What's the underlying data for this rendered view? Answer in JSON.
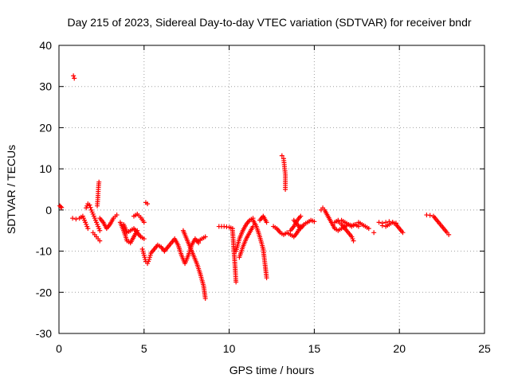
{
  "chart_data": {
    "type": "scatter",
    "title": "Day 215 of 2023, Sidereal Day-to-day VTEC variation (SDTVAR) for receiver bndr",
    "xlabel": "GPS time / hours",
    "ylabel": "SDTVAR / TECUs",
    "xlim": [
      0,
      25
    ],
    "ylim": [
      -30,
      40
    ],
    "x_ticks": [
      "0",
      "5",
      "10",
      "15",
      "20",
      "25"
    ],
    "y_ticks": [
      "40",
      "30",
      "20",
      "10",
      "0",
      "-10",
      "-20",
      "-30"
    ],
    "grid": true,
    "marker": "+",
    "color": "#ff0000",
    "series": [
      {
        "name": "SDTVAR",
        "segments": [
          [
            [
              0.05,
              1.0
            ],
            [
              0.1,
              0.8
            ],
            [
              0.15,
              0.6
            ]
          ],
          [
            [
              0.85,
              32.6
            ],
            [
              0.9,
              32.0
            ]
          ],
          [
            [
              0.8,
              -2.0
            ],
            [
              1.0,
              -2.2
            ],
            [
              1.2,
              -2.0
            ],
            [
              1.4,
              -1.5
            ],
            [
              1.5,
              -2.5
            ],
            [
              1.6,
              -3.5
            ],
            [
              1.7,
              -4.5
            ]
          ],
          [
            [
              1.6,
              0.5
            ],
            [
              1.7,
              1.5
            ],
            [
              1.8,
              1.2
            ],
            [
              1.9,
              0.0
            ],
            [
              2.0,
              -1.0
            ],
            [
              2.1,
              -2.0
            ],
            [
              2.2,
              -3.0
            ],
            [
              2.3,
              -4.0
            ],
            [
              2.4,
              -5.0
            ]
          ],
          [
            [
              2.0,
              -5.5
            ],
            [
              2.1,
              -6.0
            ],
            [
              2.2,
              -6.5
            ],
            [
              2.3,
              -7.0
            ],
            [
              2.4,
              -7.5
            ]
          ],
          [
            [
              2.25,
              1.0
            ],
            [
              2.28,
              2.5
            ],
            [
              2.3,
              4.0
            ],
            [
              2.32,
              5.5
            ],
            [
              2.35,
              6.8
            ]
          ],
          [
            [
              2.4,
              -2.0
            ],
            [
              2.6,
              -3.0
            ],
            [
              2.8,
              -4.5
            ],
            [
              3.0,
              -3.5
            ],
            [
              3.2,
              -2.0
            ],
            [
              3.4,
              -1.2
            ]
          ],
          [
            [
              3.6,
              -3.0
            ],
            [
              3.8,
              -5.0
            ],
            [
              4.0,
              -7.5
            ],
            [
              4.2,
              -8.0
            ],
            [
              4.4,
              -6.5
            ],
            [
              4.6,
              -5.0
            ]
          ],
          [
            [
              3.8,
              -3.5
            ],
            [
              4.0,
              -5.5
            ],
            [
              4.2,
              -5.0
            ],
            [
              4.4,
              -4.5
            ],
            [
              4.6,
              -5.5
            ],
            [
              4.8,
              -6.5
            ],
            [
              5.0,
              -7.0
            ]
          ],
          [
            [
              4.4,
              -1.5
            ],
            [
              4.6,
              -1.0
            ],
            [
              4.8,
              -1.8
            ],
            [
              5.0,
              -3.0
            ]
          ],
          [
            [
              4.9,
              -9.5
            ],
            [
              5.0,
              -11.0
            ],
            [
              5.1,
              -12.5
            ],
            [
              5.2,
              -13.0
            ],
            [
              5.3,
              -12.0
            ],
            [
              5.4,
              -10.5
            ],
            [
              5.6,
              -9.5
            ],
            [
              5.8,
              -8.5
            ],
            [
              6.0,
              -9.0
            ],
            [
              6.2,
              -10.0
            ]
          ],
          [
            [
              5.1,
              1.8
            ],
            [
              5.2,
              1.5
            ]
          ],
          [
            [
              6.2,
              -10.0
            ],
            [
              6.4,
              -9.0
            ],
            [
              6.6,
              -8.0
            ],
            [
              6.8,
              -7.0
            ],
            [
              7.0,
              -8.5
            ],
            [
              7.2,
              -11.0
            ],
            [
              7.4,
              -13.0
            ],
            [
              7.6,
              -11.0
            ],
            [
              7.8,
              -8.5
            ],
            [
              8.0,
              -7.0
            ],
            [
              8.2,
              -8.0
            ]
          ],
          [
            [
              7.3,
              -5.0
            ],
            [
              7.5,
              -7.0
            ],
            [
              7.7,
              -9.0
            ],
            [
              7.9,
              -11.0
            ],
            [
              8.1,
              -13.0
            ],
            [
              8.3,
              -15.5
            ],
            [
              8.5,
              -18.5
            ],
            [
              8.6,
              -21.5
            ]
          ],
          [
            [
              8.2,
              -7.5
            ],
            [
              8.4,
              -7.0
            ],
            [
              8.6,
              -6.5
            ]
          ],
          [
            [
              9.4,
              -4.0
            ],
            [
              9.7,
              -4.0
            ],
            [
              10.0,
              -4.2
            ],
            [
              10.2,
              -4.5
            ]
          ],
          [
            [
              10.2,
              -5.0
            ],
            [
              10.25,
              -8.0
            ],
            [
              10.3,
              -11.0
            ],
            [
              10.35,
              -14.0
            ],
            [
              10.4,
              -17.5
            ]
          ],
          [
            [
              10.4,
              -10.0
            ],
            [
              10.6,
              -7.0
            ],
            [
              10.8,
              -5.0
            ],
            [
              11.0,
              -3.5
            ],
            [
              11.2,
              -2.5
            ],
            [
              11.4,
              -2.0
            ]
          ],
          [
            [
              10.6,
              -11.5
            ],
            [
              10.8,
              -9.0
            ],
            [
              11.0,
              -7.0
            ],
            [
              11.2,
              -5.5
            ],
            [
              11.4,
              -4.0
            ]
          ],
          [
            [
              11.4,
              -2.5
            ],
            [
              11.6,
              -4.0
            ],
            [
              11.8,
              -6.5
            ],
            [
              12.0,
              -9.5
            ],
            [
              12.1,
              -13.0
            ],
            [
              12.2,
              -16.5
            ]
          ],
          [
            [
              11.8,
              -2.5
            ],
            [
              12.0,
              -1.5
            ],
            [
              12.2,
              -3.0
            ]
          ],
          [
            [
              13.1,
              13.2
            ],
            [
              13.2,
              12.5
            ],
            [
              13.25,
              10.5
            ],
            [
              13.3,
              8.5
            ],
            [
              13.3,
              6.5
            ],
            [
              13.3,
              5.0
            ]
          ],
          [
            [
              12.6,
              -4.0
            ],
            [
              12.8,
              -4.5
            ],
            [
              13.0,
              -5.5
            ],
            [
              13.2,
              -6.0
            ],
            [
              13.4,
              -5.5
            ],
            [
              13.6,
              -6.0
            ],
            [
              13.8,
              -6.5
            ],
            [
              14.0,
              -5.5
            ],
            [
              14.2,
              -4.0
            ]
          ],
          [
            [
              13.8,
              -2.5
            ],
            [
              14.0,
              -3.5
            ],
            [
              14.2,
              -4.5
            ],
            [
              14.4,
              -3.5
            ],
            [
              14.6,
              -3.0
            ],
            [
              14.8,
              -2.5
            ],
            [
              15.0,
              -2.8
            ]
          ],
          [
            [
              13.6,
              -5.0
            ],
            [
              13.8,
              -4.0
            ],
            [
              14.0,
              -2.5
            ],
            [
              14.2,
              -1.5
            ]
          ],
          [
            [
              15.4,
              0.0
            ],
            [
              15.5,
              0.5
            ],
            [
              15.6,
              0.0
            ],
            [
              15.8,
              -1.5
            ],
            [
              16.0,
              -3.0
            ],
            [
              16.2,
              -4.5
            ],
            [
              16.4,
              -5.0
            ],
            [
              16.6,
              -4.5
            ],
            [
              16.8,
              -4.0
            ],
            [
              17.0,
              -3.5
            ],
            [
              17.2,
              -3.8
            ],
            [
              17.4,
              -3.5
            ],
            [
              17.6,
              -4.0
            ]
          ],
          [
            [
              16.2,
              -3.0
            ],
            [
              16.4,
              -2.5
            ],
            [
              16.6,
              -2.5
            ],
            [
              16.8,
              -3.0
            ],
            [
              17.0,
              -3.5
            ],
            [
              17.2,
              -4.0
            ],
            [
              17.4,
              -3.5
            ]
          ],
          [
            [
              16.4,
              -2.8
            ],
            [
              16.6,
              -3.5
            ],
            [
              16.8,
              -4.5
            ],
            [
              17.0,
              -5.5
            ],
            [
              17.2,
              -6.5
            ],
            [
              17.3,
              -7.5
            ]
          ],
          [
            [
              17.6,
              -3.0
            ],
            [
              17.8,
              -3.5
            ],
            [
              18.0,
              -4.0
            ],
            [
              18.2,
              -4.5
            ]
          ],
          [
            [
              18.5,
              -5.5
            ]
          ],
          [
            [
              18.8,
              -3.0
            ],
            [
              19.0,
              -3.2
            ],
            [
              19.2,
              -3.0
            ],
            [
              19.4,
              -2.8
            ],
            [
              19.6,
              -3.0
            ],
            [
              19.8,
              -3.5
            ],
            [
              20.0,
              -4.5
            ],
            [
              20.2,
              -5.5
            ]
          ],
          [
            [
              19.0,
              -3.8
            ],
            [
              19.2,
              -4.0
            ],
            [
              19.4,
              -3.5
            ],
            [
              19.6,
              -3.0
            ],
            [
              19.8,
              -3.2
            ]
          ],
          [
            [
              21.6,
              -1.2
            ],
            [
              21.8,
              -1.3
            ],
            [
              22.0,
              -1.5
            ],
            [
              22.2,
              -2.5
            ],
            [
              22.4,
              -3.5
            ],
            [
              22.6,
              -4.5
            ],
            [
              22.8,
              -5.5
            ],
            [
              22.9,
              -6.0
            ]
          ]
        ]
      }
    ]
  }
}
